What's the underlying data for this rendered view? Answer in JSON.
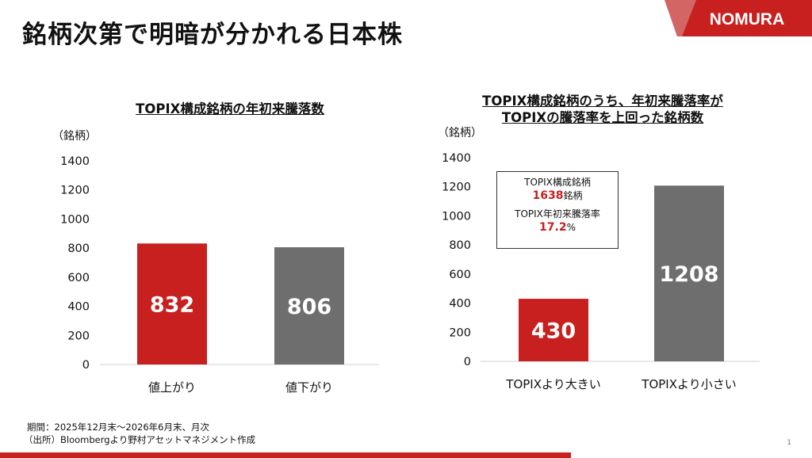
{
  "slide": {
    "title": "銘柄次第で明暗が分かれる日本株",
    "logo_text": "NOMURA",
    "page_number": "1",
    "footer": {
      "period": "期間：2025年12月末～2026年6月末、月次",
      "source": "（出所）Bloombergより野村アセットマネジメント作成"
    },
    "info_box": {
      "constituents_label": "TOPIX構成銘柄",
      "constituents_value": "1638",
      "constituents_unit": "銘柄",
      "return_label": "TOPIX年初来騰落率",
      "return_value": "17.2",
      "return_unit": "%"
    },
    "colors": {
      "brand_red": "#c8201f",
      "gray": "#6e6e6e"
    }
  },
  "chart_data": [
    {
      "type": "bar",
      "title": "TOPIX構成銘柄の年初来騰落数",
      "ylabel": "（銘柄）",
      "categories": [
        "値上がり",
        "値下がり"
      ],
      "values": [
        832,
        806
      ],
      "colors": [
        "#c8201f",
        "#6e6e6e"
      ],
      "ylim": [
        0,
        1400
      ],
      "yticks": [
        0,
        200,
        400,
        600,
        800,
        1000,
        1200,
        1400
      ],
      "grid": false
    },
    {
      "type": "bar",
      "title": "TOPIX構成銘柄のうち、年初来騰落率が\nTOPIXの騰落率を上回った銘柄数",
      "ylabel": "（銘柄）",
      "categories": [
        "TOPIXより大きい",
        "TOPIXより小さい"
      ],
      "values": [
        430,
        1208
      ],
      "colors": [
        "#c8201f",
        "#6e6e6e"
      ],
      "ylim": [
        0,
        1400
      ],
      "yticks": [
        0,
        200,
        400,
        600,
        800,
        1000,
        1200,
        1400
      ],
      "grid": false
    }
  ]
}
